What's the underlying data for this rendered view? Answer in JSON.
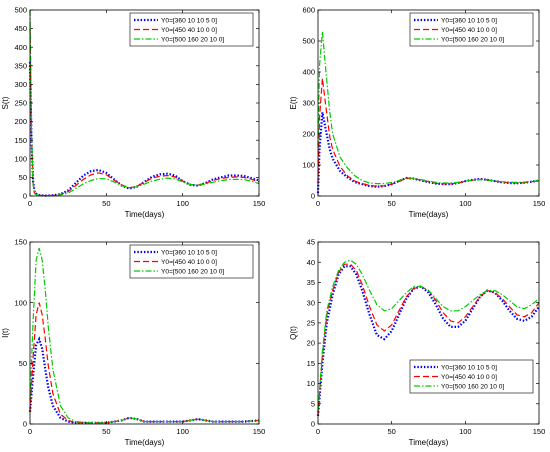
{
  "chart_data": [
    {
      "type": "line",
      "xlabel": "Time(days)",
      "ylabel": "S(t)",
      "xlim": [
        0,
        150
      ],
      "ylim": [
        0,
        500
      ],
      "xticks": [
        "0",
        "50",
        "100",
        "150"
      ],
      "yticks": [
        "0",
        "50",
        "100",
        "150",
        "200",
        "250",
        "300",
        "350",
        "400",
        "450",
        "500"
      ],
      "legend_position": "top-right",
      "grid": false,
      "series": [
        {
          "name": "Y0=[360 10 10 5 0]",
          "color": "#0000ff",
          "style": "dotted",
          "x": [
            0,
            1,
            2,
            3,
            5,
            10,
            15,
            20,
            25,
            30,
            35,
            40,
            45,
            50,
            55,
            60,
            65,
            70,
            75,
            80,
            85,
            90,
            95,
            100,
            105,
            110,
            115,
            120,
            125,
            130,
            135,
            140,
            145,
            150
          ],
          "y": [
            360,
            150,
            40,
            10,
            3,
            1,
            2,
            5,
            15,
            35,
            55,
            67,
            70,
            62,
            45,
            28,
            20,
            25,
            38,
            52,
            58,
            60,
            55,
            40,
            30,
            28,
            35,
            45,
            50,
            55,
            55,
            54,
            48,
            42
          ]
        },
        {
          "name": "Y0=[450 40 10 0 0]",
          "color": "#ff0000",
          "style": "dashed",
          "x": [
            0,
            1,
            2,
            3,
            5,
            10,
            15,
            20,
            25,
            30,
            35,
            40,
            45,
            50,
            55,
            60,
            65,
            70,
            75,
            80,
            85,
            90,
            95,
            100,
            105,
            110,
            115,
            120,
            125,
            130,
            135,
            140,
            145,
            150
          ],
          "y": [
            450,
            160,
            35,
            8,
            2,
            1,
            2,
            4,
            12,
            28,
            45,
            57,
            62,
            57,
            43,
            30,
            22,
            26,
            37,
            48,
            53,
            55,
            51,
            40,
            31,
            29,
            34,
            42,
            47,
            50,
            51,
            50,
            45,
            38
          ]
        },
        {
          "name": "Y0=[500 160 20 10 0]",
          "color": "#00cc00",
          "style": "dashdot",
          "x": [
            0,
            1,
            2,
            3,
            5,
            10,
            15,
            20,
            25,
            30,
            35,
            40,
            45,
            50,
            55,
            60,
            65,
            70,
            75,
            80,
            85,
            90,
            95,
            100,
            105,
            110,
            115,
            120,
            125,
            130,
            135,
            140,
            145,
            150
          ],
          "y": [
            500,
            170,
            30,
            6,
            2,
            1,
            1,
            3,
            8,
            20,
            33,
            42,
            47,
            46,
            38,
            28,
            22,
            25,
            32,
            40,
            45,
            48,
            46,
            38,
            31,
            29,
            32,
            37,
            41,
            44,
            45,
            44,
            40,
            33
          ]
        }
      ]
    },
    {
      "type": "line",
      "xlabel": "Time(days)",
      "ylabel": "E(t)",
      "xlim": [
        0,
        150
      ],
      "ylim": [
        0,
        600
      ],
      "xticks": [
        "0",
        "50",
        "100",
        "150"
      ],
      "yticks": [
        "0",
        "100",
        "200",
        "300",
        "400",
        "500",
        "600"
      ],
      "legend_position": "top-right",
      "grid": false,
      "series": [
        {
          "name": "Y0=[360 10 10 5 0]",
          "color": "#0000ff",
          "style": "dotted",
          "x": [
            0,
            1,
            3,
            5,
            8,
            10,
            15,
            20,
            25,
            30,
            35,
            40,
            45,
            50,
            55,
            60,
            65,
            70,
            75,
            80,
            85,
            90,
            95,
            100,
            105,
            110,
            115,
            120,
            125,
            130,
            135,
            140,
            145,
            150
          ],
          "y": [
            10,
            150,
            270,
            220,
            150,
            120,
            80,
            60,
            45,
            38,
            32,
            30,
            32,
            38,
            48,
            58,
            56,
            50,
            45,
            40,
            38,
            38,
            42,
            48,
            52,
            55,
            52,
            48,
            44,
            42,
            41,
            43,
            46,
            50
          ]
        },
        {
          "name": "Y0=[450 40 10 0 0]",
          "color": "#ff0000",
          "style": "dashed",
          "x": [
            0,
            1,
            3,
            5,
            8,
            10,
            15,
            20,
            25,
            30,
            35,
            40,
            45,
            50,
            55,
            60,
            65,
            70,
            75,
            80,
            85,
            90,
            95,
            100,
            105,
            110,
            115,
            120,
            125,
            130,
            135,
            140,
            145,
            150
          ],
          "y": [
            40,
            250,
            380,
            300,
            190,
            150,
            95,
            65,
            48,
            40,
            34,
            32,
            33,
            38,
            47,
            57,
            56,
            51,
            46,
            41,
            39,
            39,
            42,
            47,
            51,
            54,
            52,
            48,
            45,
            43,
            42,
            43,
            46,
            49
          ]
        },
        {
          "name": "Y0=[500 160 20 10 0]",
          "color": "#00cc00",
          "style": "dashdot",
          "x": [
            0,
            1,
            3,
            5,
            8,
            10,
            15,
            20,
            25,
            30,
            35,
            40,
            45,
            50,
            55,
            60,
            65,
            70,
            75,
            80,
            85,
            90,
            95,
            100,
            105,
            110,
            115,
            120,
            125,
            130,
            135,
            140,
            145,
            150
          ],
          "y": [
            160,
            420,
            530,
            420,
            270,
            200,
            125,
            90,
            65,
            50,
            42,
            40,
            40,
            44,
            50,
            58,
            57,
            53,
            48,
            44,
            42,
            42,
            44,
            48,
            51,
            53,
            51,
            48,
            46,
            45,
            44,
            45,
            47,
            50
          ]
        }
      ]
    },
    {
      "type": "line",
      "xlabel": "Time(days)",
      "ylabel": "I(t)",
      "xlim": [
        0,
        150
      ],
      "ylim": [
        0,
        150
      ],
      "xticks": [
        "0",
        "50",
        "100",
        "150"
      ],
      "yticks": [
        "0",
        "50",
        "100",
        "150"
      ],
      "legend_position": "top-right",
      "grid": false,
      "series": [
        {
          "name": "Y0=[360 10 10 5 0]",
          "color": "#0000ff",
          "style": "dotted",
          "x": [
            0,
            2,
            4,
            6,
            8,
            10,
            12,
            15,
            20,
            25,
            30,
            40,
            50,
            55,
            60,
            65,
            70,
            75,
            80,
            90,
            100,
            105,
            110,
            115,
            120,
            130,
            140,
            150
          ],
          "y": [
            10,
            40,
            65,
            70,
            62,
            45,
            30,
            15,
            5,
            2,
            1,
            1,
            1,
            2,
            3,
            5,
            4,
            2,
            2,
            2,
            2,
            3,
            4,
            3,
            2,
            2,
            2,
            3
          ]
        },
        {
          "name": "Y0=[450 40 10 0 0]",
          "color": "#ff0000",
          "style": "dashed",
          "x": [
            0,
            2,
            4,
            6,
            8,
            10,
            12,
            15,
            20,
            25,
            30,
            40,
            50,
            55,
            60,
            65,
            70,
            75,
            80,
            90,
            100,
            105,
            110,
            115,
            120,
            130,
            140,
            150
          ],
          "y": [
            10,
            55,
            90,
            100,
            90,
            70,
            48,
            25,
            8,
            3,
            1,
            1,
            1,
            2,
            3,
            5,
            4,
            2,
            2,
            2,
            2,
            3,
            4,
            3,
            2,
            2,
            2,
            3
          ]
        },
        {
          "name": "Y0=[500 160 20 10 0]",
          "color": "#00cc00",
          "style": "dashdot",
          "x": [
            0,
            2,
            4,
            6,
            8,
            10,
            12,
            15,
            20,
            25,
            30,
            40,
            50,
            55,
            60,
            65,
            70,
            75,
            80,
            90,
            100,
            105,
            110,
            115,
            120,
            130,
            140,
            150
          ],
          "y": [
            20,
            85,
            135,
            145,
            135,
            110,
            80,
            45,
            15,
            5,
            2,
            1,
            1,
            2,
            3,
            5,
            4,
            2,
            2,
            2,
            2,
            3,
            4,
            3,
            2,
            2,
            2,
            3
          ]
        }
      ]
    },
    {
      "type": "line",
      "xlabel": "Time(days)",
      "ylabel": "Q(t)",
      "xlim": [
        0,
        150
      ],
      "ylim": [
        0,
        45
      ],
      "xticks": [
        "0",
        "50",
        "100",
        "150"
      ],
      "yticks": [
        "0",
        "5",
        "10",
        "15",
        "20",
        "25",
        "30",
        "35",
        "40",
        "45"
      ],
      "legend_position": "bottom-right",
      "grid": false,
      "series": [
        {
          "name": "Y0=[360 10 10 5 0]",
          "color": "#0000ff",
          "style": "dotted",
          "x": [
            0,
            3,
            6,
            10,
            14,
            18,
            22,
            26,
            30,
            35,
            40,
            45,
            50,
            55,
            60,
            65,
            70,
            75,
            80,
            85,
            90,
            95,
            100,
            105,
            110,
            115,
            120,
            125,
            130,
            135,
            140,
            145,
            150
          ],
          "y": [
            2,
            15,
            25,
            32,
            37,
            39,
            39,
            37,
            33,
            27,
            22,
            21,
            23,
            27,
            31,
            33.5,
            34,
            32.5,
            29.5,
            26,
            24,
            24,
            25.5,
            28.5,
            31.5,
            33,
            32.5,
            30.5,
            28,
            26,
            25.5,
            26.5,
            29
          ]
        },
        {
          "name": "Y0=[450 40 10 0 0]",
          "color": "#ff0000",
          "style": "dashed",
          "x": [
            0,
            3,
            6,
            10,
            14,
            18,
            22,
            26,
            30,
            35,
            40,
            45,
            50,
            55,
            60,
            65,
            70,
            75,
            80,
            85,
            90,
            95,
            100,
            105,
            110,
            115,
            120,
            125,
            130,
            135,
            140,
            145,
            150
          ],
          "y": [
            2,
            17,
            27,
            33,
            37.5,
            39.5,
            39.5,
            38,
            34.5,
            29,
            24.5,
            23,
            24.5,
            28,
            31.5,
            33.5,
            34,
            33,
            30.5,
            27.5,
            25.5,
            25,
            26.5,
            29,
            31.5,
            33,
            32.5,
            31,
            29,
            27,
            26.5,
            27.5,
            30
          ]
        },
        {
          "name": "Y0=[500 160 20 10 0]",
          "color": "#00cc00",
          "style": "dashdot",
          "x": [
            0,
            3,
            6,
            10,
            14,
            18,
            22,
            26,
            30,
            35,
            40,
            45,
            50,
            55,
            60,
            65,
            70,
            75,
            80,
            85,
            90,
            95,
            100,
            105,
            110,
            115,
            120,
            125,
            130,
            135,
            140,
            145,
            150
          ],
          "y": [
            3,
            18,
            28,
            34,
            38,
            40,
            40.5,
            39.5,
            37,
            33,
            29.5,
            28,
            28.5,
            30.5,
            32.5,
            34,
            34,
            33,
            31,
            29,
            28,
            28,
            29,
            30.5,
            32,
            33,
            33,
            32,
            30.5,
            29,
            28.5,
            29.5,
            31
          ]
        }
      ]
    }
  ]
}
